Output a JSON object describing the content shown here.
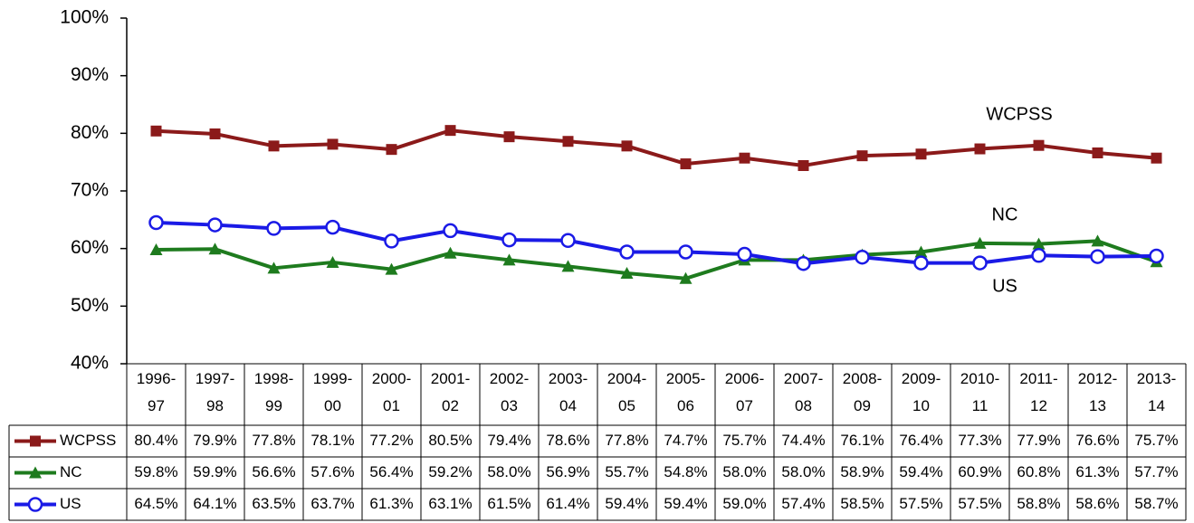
{
  "chart_data": {
    "type": "line",
    "categories": [
      "1996-97",
      "1997-98",
      "1998-99",
      "1999-00",
      "2000-01",
      "2001-02",
      "2002-03",
      "2003-04",
      "2004-05",
      "2005-06",
      "2006-07",
      "2007-08",
      "2008-09",
      "2009-10",
      "2010-11",
      "2011-12",
      "2012-13",
      "2013-14"
    ],
    "series": [
      {
        "name": "WCPSS",
        "color": "#8b1a1a",
        "marker": "square",
        "values": [
          80.4,
          79.9,
          77.8,
          78.1,
          77.2,
          80.5,
          79.4,
          78.6,
          77.8,
          74.7,
          75.7,
          74.4,
          76.1,
          76.4,
          77.3,
          77.9,
          76.6,
          75.7
        ],
        "value_labels": [
          "80.4%",
          "79.9%",
          "77.8%",
          "78.1%",
          "77.2%",
          "80.5%",
          "79.4%",
          "78.6%",
          "77.8%",
          "74.7%",
          "75.7%",
          "74.4%",
          "76.1%",
          "76.4%",
          "77.3%",
          "77.9%",
          "76.6%",
          "75.7%"
        ]
      },
      {
        "name": "NC",
        "color": "#1e7b1e",
        "marker": "triangle",
        "values": [
          59.8,
          59.9,
          56.6,
          57.6,
          56.4,
          59.2,
          58.0,
          56.9,
          55.7,
          54.8,
          58.0,
          58.0,
          58.9,
          59.4,
          60.9,
          60.8,
          61.3,
          57.7
        ],
        "value_labels": [
          "59.8%",
          "59.9%",
          "56.6%",
          "57.6%",
          "56.4%",
          "59.2%",
          "58.0%",
          "56.9%",
          "55.7%",
          "54.8%",
          "58.0%",
          "58.0%",
          "58.9%",
          "59.4%",
          "60.9%",
          "60.8%",
          "61.3%",
          "57.7%"
        ]
      },
      {
        "name": "US",
        "color": "#1a1ae6",
        "marker": "circle",
        "values": [
          64.5,
          64.1,
          63.5,
          63.7,
          61.3,
          63.1,
          61.5,
          61.4,
          59.4,
          59.4,
          59.0,
          57.4,
          58.5,
          57.5,
          57.5,
          58.8,
          58.6,
          58.7
        ],
        "value_labels": [
          "64.5%",
          "64.1%",
          "63.5%",
          "63.7%",
          "61.3%",
          "63.1%",
          "61.5%",
          "61.4%",
          "59.4%",
          "59.4%",
          "59.0%",
          "57.4%",
          "58.5%",
          "57.5%",
          "57.5%",
          "58.8%",
          "58.6%",
          "58.7%"
        ]
      }
    ],
    "ylim": [
      40,
      100
    ],
    "yticks": [
      {
        "value": 40,
        "label": "40%"
      },
      {
        "value": 50,
        "label": "50%"
      },
      {
        "value": 60,
        "label": "60%"
      },
      {
        "value": 70,
        "label": "70%"
      },
      {
        "value": 80,
        "label": "80%"
      },
      {
        "value": 90,
        "label": "90%"
      },
      {
        "value": 100,
        "label": "100%"
      }
    ],
    "annotations": [
      "WCPSS",
      "NC",
      "US"
    ],
    "grid": false
  }
}
